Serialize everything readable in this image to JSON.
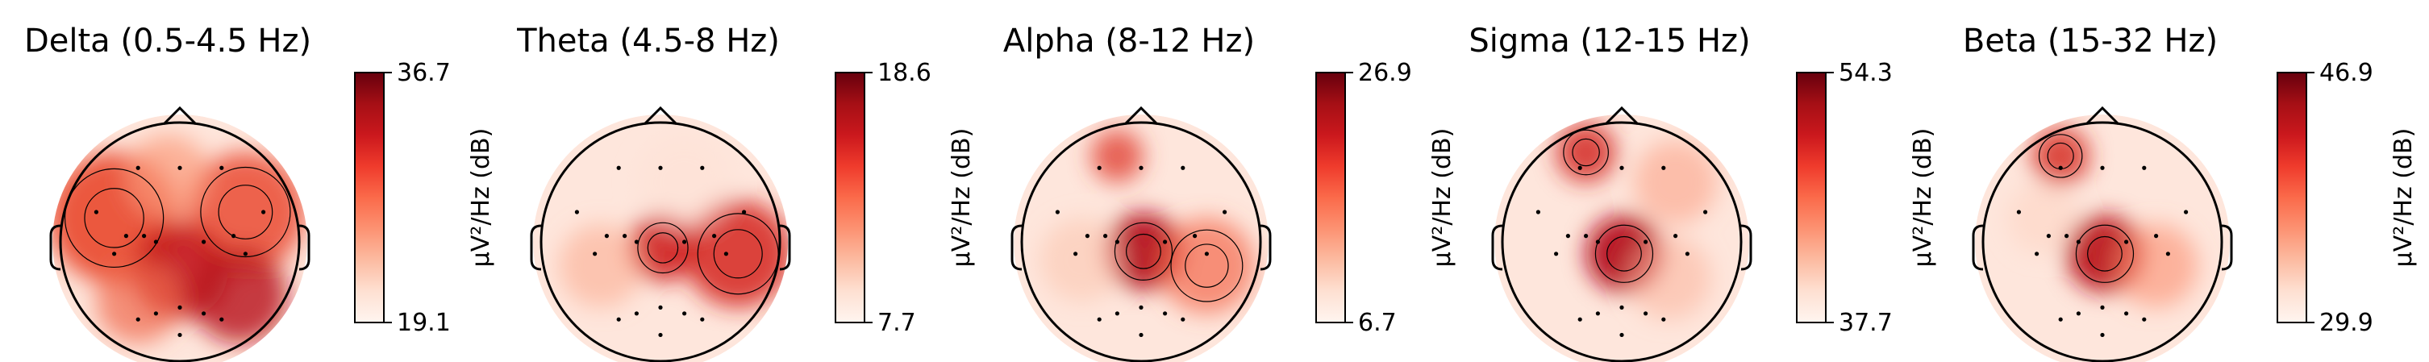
{
  "chart_data": {
    "type": "heatmap",
    "colormap": "Reds",
    "panels": [
      {
        "title": "Delta (0.5-4.5 Hz)",
        "vmax": 36.7,
        "vmin": 19.1,
        "colorbar_label": "µV²/Hz (dB)"
      },
      {
        "title": "Theta (4.5-8 Hz)",
        "vmax": 18.6,
        "vmin": 7.7,
        "colorbar_label": "µV²/Hz (dB)"
      },
      {
        "title": "Alpha (8-12 Hz)",
        "vmax": 26.9,
        "vmin": 6.7,
        "colorbar_label": "µV²/Hz (dB)"
      },
      {
        "title": "Sigma (12-15 Hz)",
        "vmax": 54.3,
        "vmin": 37.7,
        "colorbar_label": "µV²/Hz (dB)"
      },
      {
        "title": "Beta (15-32 Hz)",
        "vmax": 46.9,
        "vmin": 29.9,
        "colorbar_label": "µV²/Hz (dB)"
      }
    ]
  }
}
